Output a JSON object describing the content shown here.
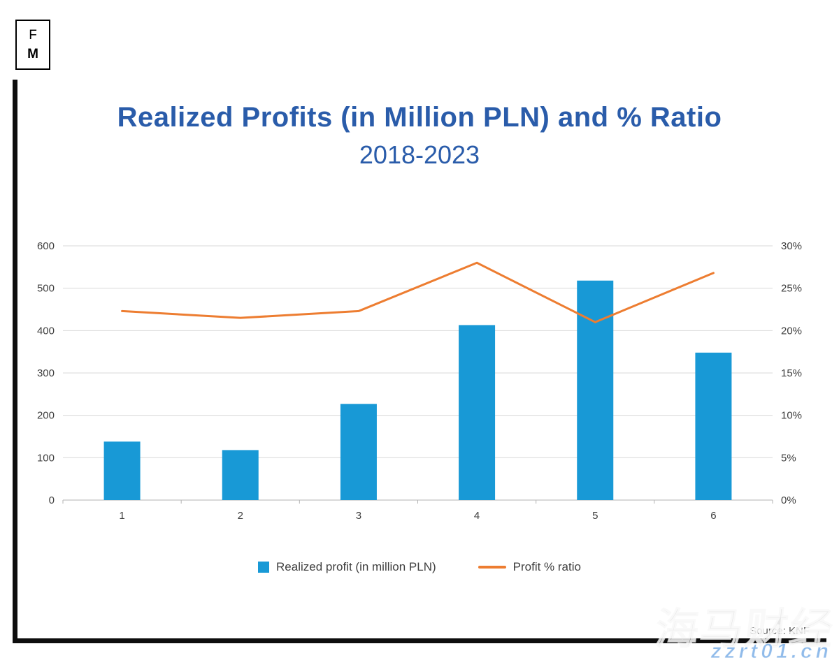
{
  "logo": {
    "line1": "F",
    "line2": "M"
  },
  "header": {
    "title": "Realized Profits (in Million PLN) and % Ratio",
    "subtitle": "2018-2023"
  },
  "colors": {
    "bar": "#1899D6",
    "line": "#ED7D31",
    "title": "#2A5CAA"
  },
  "legend": [
    {
      "label": "Realized profit (in million PLN)",
      "color": "#1899D6",
      "type": "square"
    },
    {
      "label": "Profit % ratio",
      "color": "#ED7D31",
      "type": "line"
    }
  ],
  "source": "Source: KNF",
  "watermark": {
    "line1": "海马财经",
    "line2": "zzrt01.cn"
  },
  "chart_data": {
    "type": "bar",
    "subtype": "bar+line combo",
    "title": "Realized Profits (in Million PLN) and % Ratio 2018-2023",
    "categories": [
      "1",
      "2",
      "3",
      "4",
      "5",
      "6"
    ],
    "series": [
      {
        "name": "Realized profit (in million PLN)",
        "type": "bar",
        "axis": "left",
        "color": "#1899D6",
        "values": [
          138,
          118,
          227,
          413,
          518,
          348
        ]
      },
      {
        "name": "Profit % ratio",
        "type": "line",
        "axis": "right",
        "color": "#ED7D31",
        "values": [
          22.3,
          21.5,
          22.3,
          28.0,
          21.0,
          26.8
        ]
      }
    ],
    "left_axis": {
      "min": 0,
      "max": 600,
      "step": 100,
      "tick_labels": [
        "0",
        "100",
        "200",
        "300",
        "400",
        "500",
        "600"
      ]
    },
    "right_axis": {
      "min": 0,
      "max": 30,
      "step": 5,
      "tick_labels": [
        "0%",
        "5%",
        "10%",
        "15%",
        "20%",
        "25%",
        "30%"
      ]
    },
    "grid": true,
    "legend_position": "bottom"
  }
}
